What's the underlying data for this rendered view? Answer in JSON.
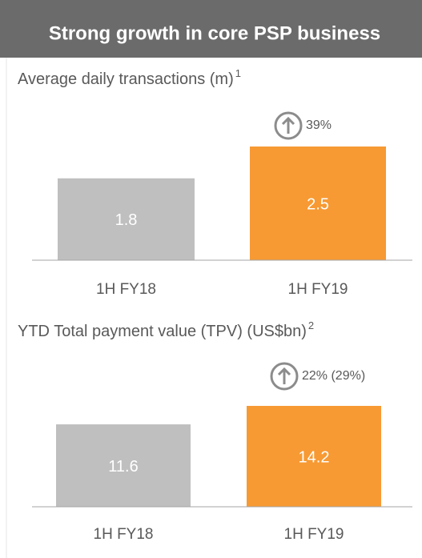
{
  "header": {
    "title": "Strong growth in core PSP business"
  },
  "chart_data": [
    {
      "type": "bar",
      "title": "Average daily transactions (m)",
      "footnote_ref": "1",
      "categories": [
        "1H FY18",
        "1H FY19"
      ],
      "values": [
        1.8,
        2.5
      ],
      "colors": [
        "#bfbfbf",
        "#f79a33"
      ],
      "annotation": "39%"
    },
    {
      "type": "bar",
      "title": "YTD Total payment value (TPV) (US$bn)",
      "footnote_ref": "2",
      "categories": [
        "1H FY18",
        "1H FY19"
      ],
      "values": [
        11.6,
        14.2
      ],
      "colors": [
        "#bfbfbf",
        "#f79a33"
      ],
      "annotation": "22% (29%)"
    }
  ]
}
